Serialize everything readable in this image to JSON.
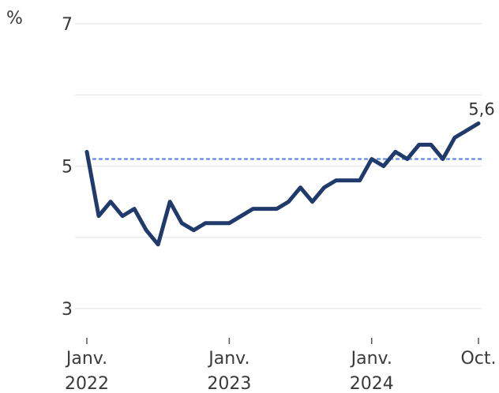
{
  "chart_data": {
    "type": "line",
    "ylabel": "%",
    "ylim": [
      3,
      7
    ],
    "yticks": [
      "7",
      "5",
      "3"
    ],
    "ygrid": [
      3,
      4,
      5,
      6,
      7
    ],
    "xlim": [
      0,
      33
    ],
    "xticks": [
      {
        "x": 0,
        "line1": "Janv.",
        "line2": "2022"
      },
      {
        "x": 12,
        "line1": "Janv.",
        "line2": "2023"
      },
      {
        "x": 24,
        "line1": "Janv.",
        "line2": "2024"
      },
      {
        "x": 33,
        "line1": "Oct.",
        "line2": ""
      }
    ],
    "reference_line": {
      "y": 5.1,
      "style": "dotted",
      "color": "#6f96dc"
    },
    "series": [
      {
        "color": "#1f3a6b",
        "points": [
          [
            0,
            5.2
          ],
          [
            1,
            4.3
          ],
          [
            2,
            4.5
          ],
          [
            3,
            4.3
          ],
          [
            4,
            4.4
          ],
          [
            5,
            4.1
          ],
          [
            6,
            3.9
          ],
          [
            7,
            4.5
          ],
          [
            8,
            4.2
          ],
          [
            9,
            4.1
          ],
          [
            10,
            4.2
          ],
          [
            11,
            4.2
          ],
          [
            12,
            4.2
          ],
          [
            13,
            4.3
          ],
          [
            14,
            4.4
          ],
          [
            15,
            4.4
          ],
          [
            16,
            4.4
          ],
          [
            17,
            4.5
          ],
          [
            18,
            4.7
          ],
          [
            19,
            4.5
          ],
          [
            20,
            4.7
          ],
          [
            21,
            4.8
          ],
          [
            22,
            4.8
          ],
          [
            23,
            4.8
          ],
          [
            24,
            5.1
          ],
          [
            25,
            5.0
          ],
          [
            26,
            5.2
          ],
          [
            27,
            5.1
          ],
          [
            28,
            5.3
          ],
          [
            29,
            5.3
          ],
          [
            30,
            5.1
          ],
          [
            31,
            5.4
          ],
          [
            32,
            5.5
          ],
          [
            33,
            5.6
          ]
        ]
      }
    ],
    "annotation": {
      "x": 33,
      "y": 5.6,
      "text": "5,6"
    }
  }
}
